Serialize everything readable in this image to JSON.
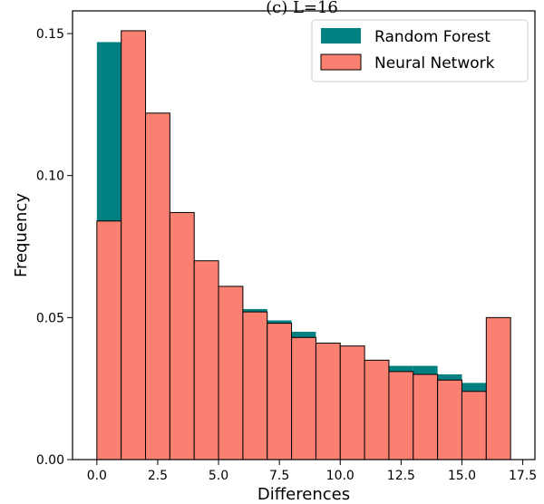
{
  "chart_data": {
    "type": "bar",
    "title": "(c) L=16",
    "xlabel": "Differences",
    "ylabel": "Frequency",
    "xlim": [
      -1,
      18
    ],
    "ylim": [
      0,
      0.158
    ],
    "xticks": [
      0.0,
      2.5,
      5.0,
      7.5,
      10.0,
      12.5,
      15.0,
      17.5
    ],
    "xtick_labels": [
      "0.0",
      "2.5",
      "5.0",
      "7.5",
      "10.0",
      "12.5",
      "15.0",
      "17.5"
    ],
    "yticks": [
      0.0,
      0.05,
      0.1,
      0.15
    ],
    "ytick_labels": [
      "0.00",
      "0.05",
      "0.10",
      "0.15"
    ],
    "bin_edges": [
      0,
      1,
      2,
      3,
      4,
      5,
      6,
      7,
      8,
      9,
      10,
      11,
      12,
      13,
      14,
      15,
      16,
      17
    ],
    "legend_position": "top-right",
    "grid": false,
    "series": [
      {
        "name": "Random Forest",
        "color": "#008080",
        "values": [
          0.147,
          0.151,
          0.122,
          0.087,
          0.07,
          0.061,
          0.053,
          0.049,
          0.045,
          0.041,
          0.04,
          0.035,
          0.033,
          0.033,
          0.03,
          0.027,
          0.05
        ]
      },
      {
        "name": "Neural Network",
        "color": "#fa8072",
        "values": [
          0.084,
          0.151,
          0.122,
          0.087,
          0.07,
          0.061,
          0.052,
          0.048,
          0.043,
          0.041,
          0.04,
          0.035,
          0.031,
          0.03,
          0.028,
          0.024,
          0.05
        ]
      }
    ]
  }
}
